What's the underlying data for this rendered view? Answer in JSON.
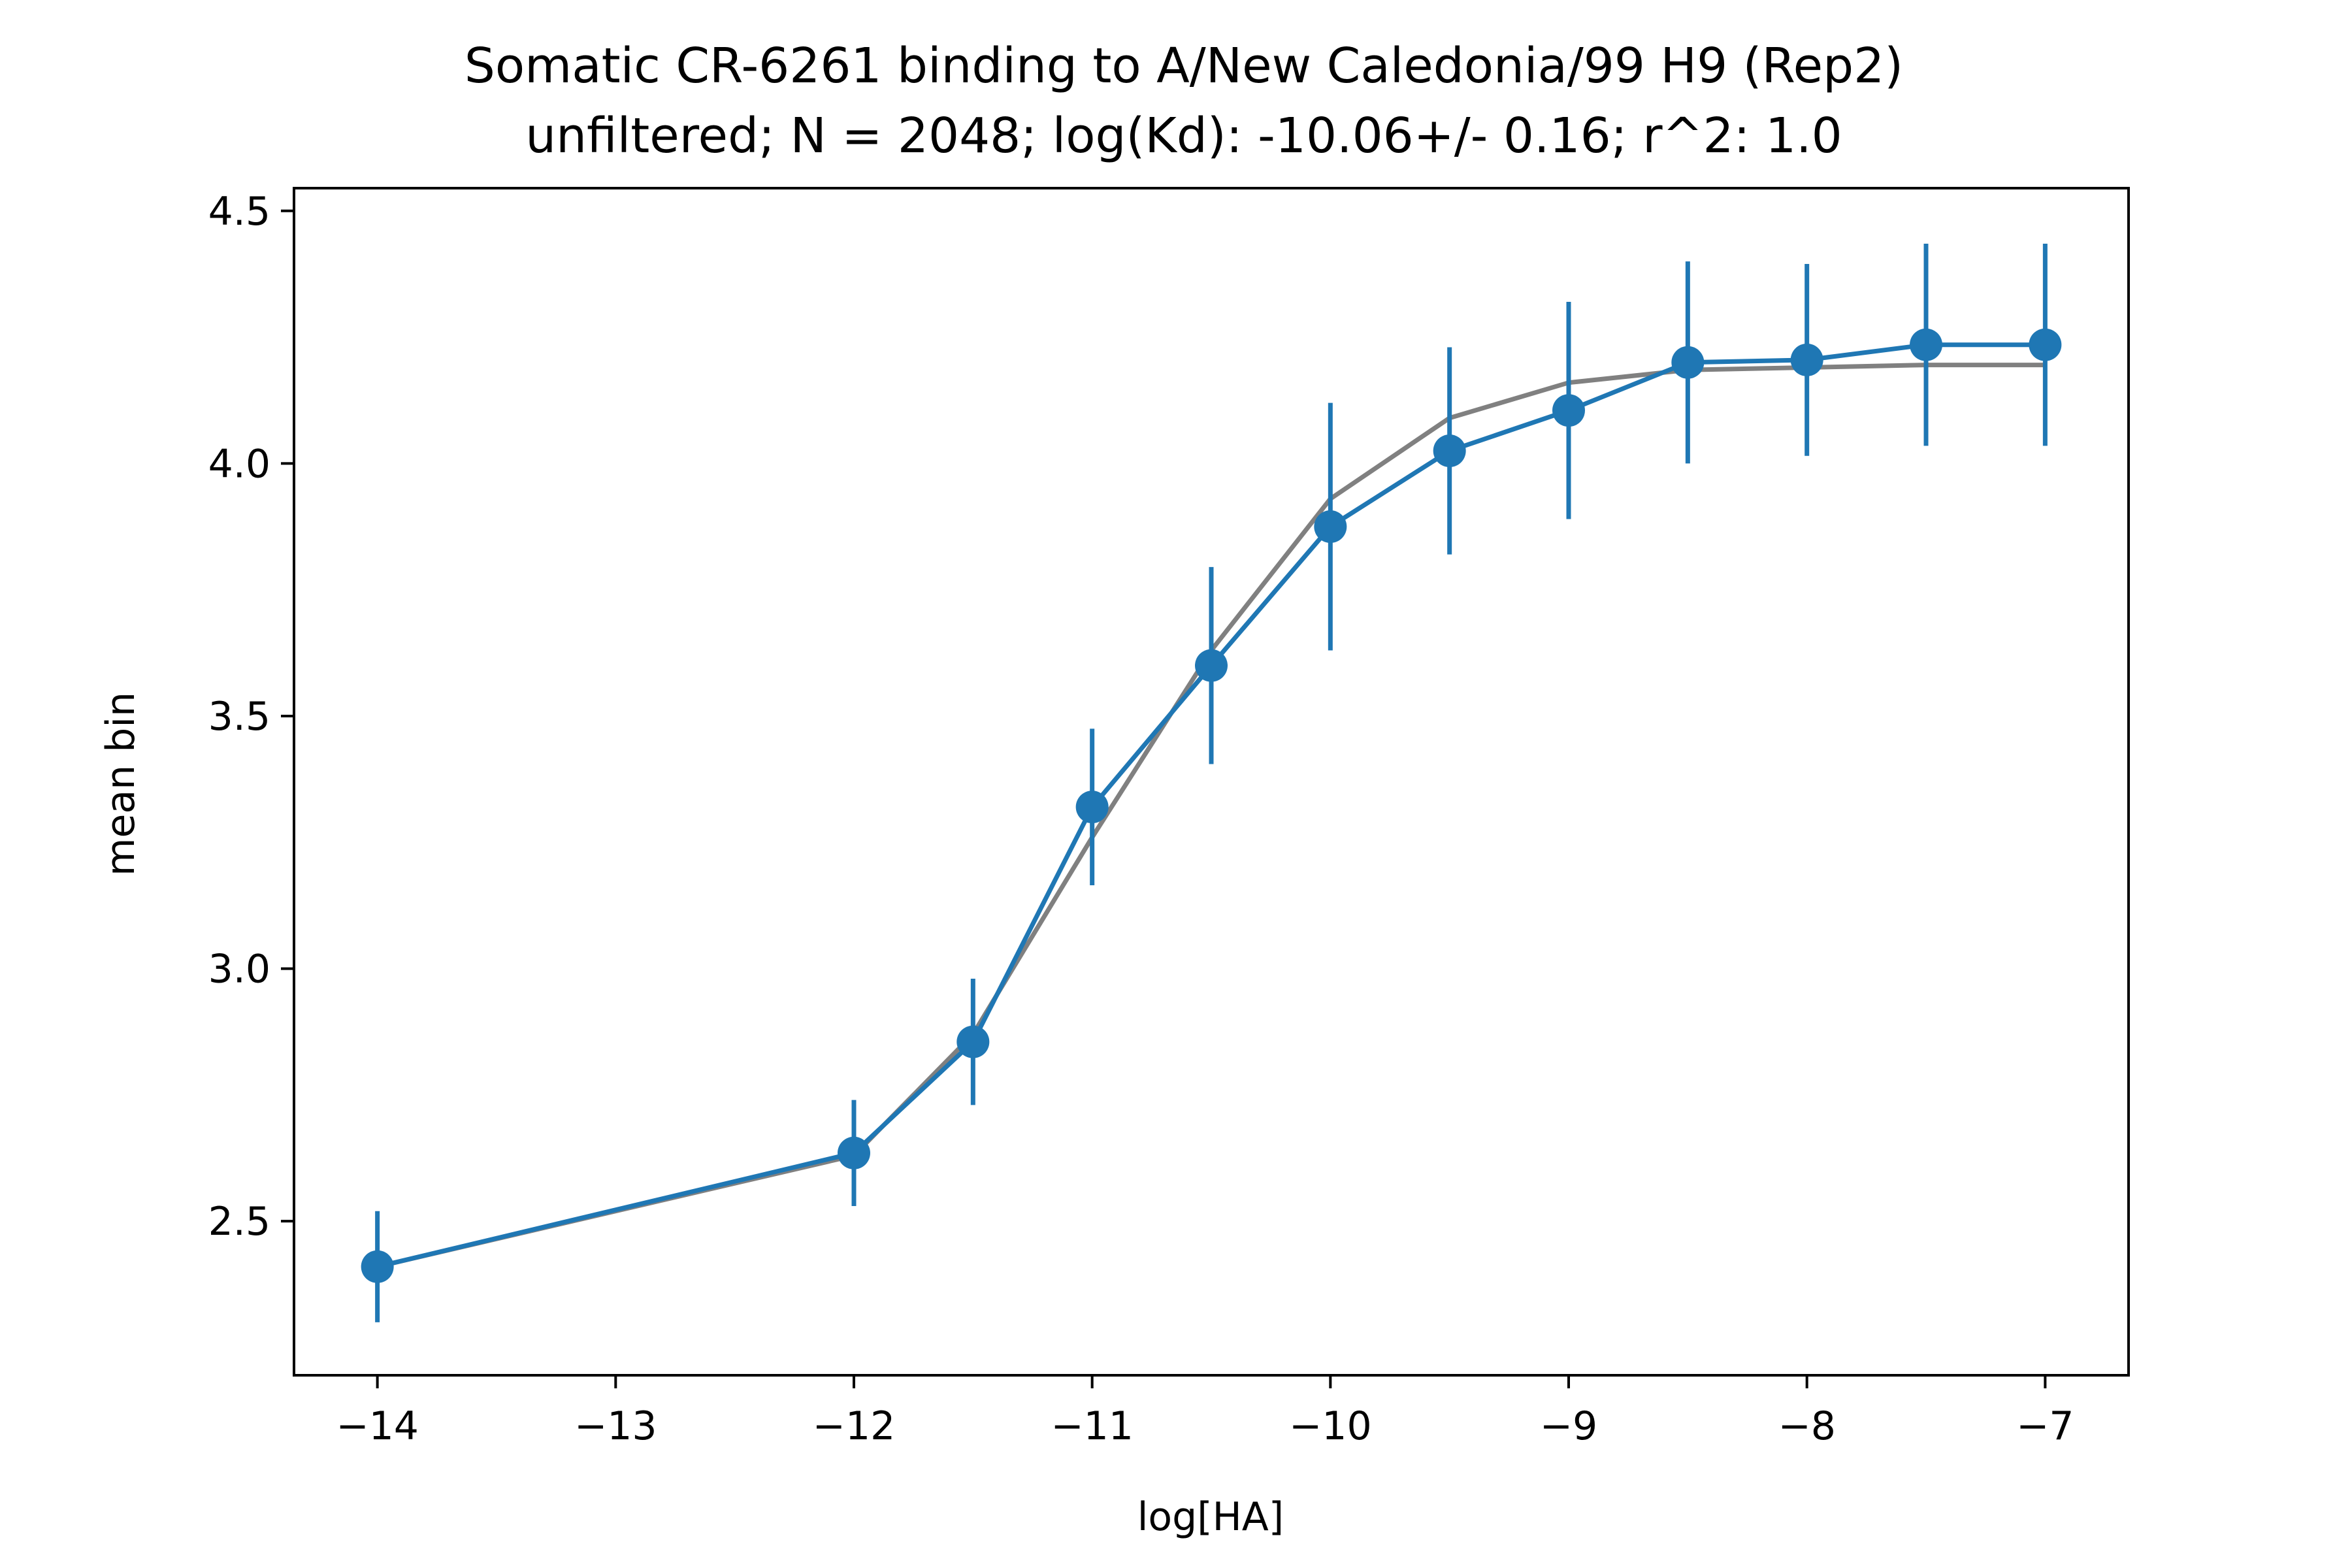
{
  "chart_data": {
    "type": "line",
    "title": "Somatic CR-6261 binding to A/New Caledonia/99 H9 (Rep2)",
    "subtitle": "unfiltered; N = 2048; log(Kd): -10.06+/- 0.16; r^2: 1.0",
    "xlabel": "log[HA]",
    "ylabel": "mean bin",
    "xlim": [
      -14.35,
      -6.65
    ],
    "ylim": [
      2.195,
      4.545
    ],
    "x_ticks": [
      -14,
      -13,
      -12,
      -11,
      -10,
      -9,
      -8,
      -7
    ],
    "x_tick_labels": [
      "−14",
      "−13",
      "−12",
      "−11",
      "−10",
      "−9",
      "−8",
      "−7"
    ],
    "y_ticks": [
      2.5,
      3.0,
      3.5,
      4.0,
      4.5
    ],
    "y_tick_labels": [
      "2.5",
      "3.0",
      "3.5",
      "4.0",
      "4.5"
    ],
    "grid": false,
    "legend": "none",
    "series": [
      {
        "kind": "fit-line",
        "color": "#808080",
        "x": [
          -14,
          -12,
          -11.5,
          -11,
          -10.5,
          -10,
          -9.5,
          -9,
          -8.5,
          -8,
          -7.5,
          -7
        ],
        "y": [
          2.41,
          2.63,
          2.87,
          3.26,
          3.63,
          3.93,
          4.09,
          4.16,
          4.185,
          4.19,
          4.195,
          4.195
        ]
      },
      {
        "kind": "data-with-errorbars",
        "color": "#1f77b4",
        "x": [
          -14,
          -12,
          -11.5,
          -11,
          -10.5,
          -10,
          -9.5,
          -9,
          -8.5,
          -8,
          -7.5,
          -7
        ],
        "y": [
          2.41,
          2.635,
          2.855,
          3.32,
          3.6,
          3.875,
          4.025,
          4.105,
          4.2,
          4.205,
          4.235,
          4.235
        ],
        "yerr": [
          0.11,
          0.105,
          0.125,
          0.155,
          0.195,
          0.245,
          0.205,
          0.215,
          0.2,
          0.19,
          0.2,
          0.2
        ]
      }
    ]
  }
}
